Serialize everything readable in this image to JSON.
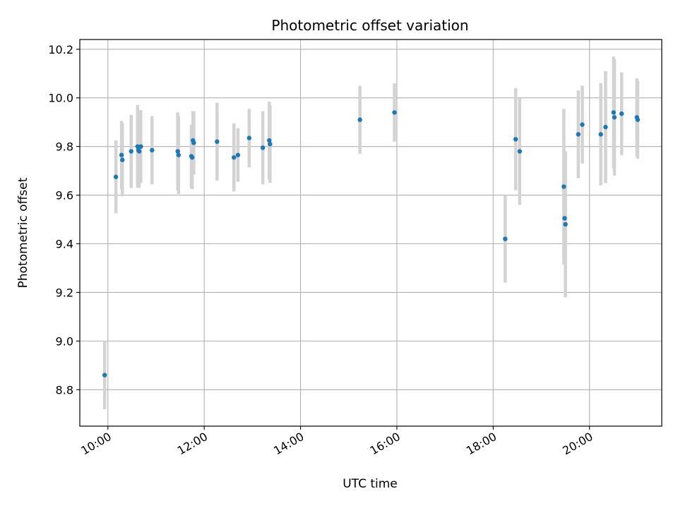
{
  "chart_data": {
    "type": "scatter",
    "title": "Photometric offset variation",
    "xlabel": "UTC time",
    "ylabel": "Photometric offset",
    "x_ticks": [
      "10:00",
      "12:00",
      "14:00",
      "16:00",
      "18:00",
      "20:00"
    ],
    "y_ticks": [
      "8.8",
      "9.0",
      "9.2",
      "9.4",
      "9.6",
      "9.8",
      "10.0",
      "10.2"
    ],
    "xlim": [
      "09:25",
      "21:30"
    ],
    "ylim": [
      8.65,
      10.24
    ],
    "grid": true,
    "legend": "none",
    "point_color": "#1f77b4",
    "errorbar_color": "#d3d3d3",
    "series": [
      {
        "points": [
          {
            "x": "09:56",
            "y": 8.86,
            "err": 0.14
          },
          {
            "x": "10:10",
            "y": 9.675,
            "err": 0.15
          },
          {
            "x": "10:17",
            "y": 9.765,
            "err": 0.14
          },
          {
            "x": "10:18",
            "y": 9.745,
            "err": 0.15
          },
          {
            "x": "10:29",
            "y": 9.78,
            "err": 0.15
          },
          {
            "x": "10:37",
            "y": 9.8,
            "err": 0.17
          },
          {
            "x": "10:38",
            "y": 9.785,
            "err": 0.15
          },
          {
            "x": "10:39",
            "y": 9.78,
            "err": 0.15
          },
          {
            "x": "10:41",
            "y": 9.8,
            "err": 0.15
          },
          {
            "x": "10:55",
            "y": 9.785,
            "err": 0.14
          },
          {
            "x": "11:27",
            "y": 9.78,
            "err": 0.16
          },
          {
            "x": "11:28",
            "y": 9.765,
            "err": 0.16
          },
          {
            "x": "11:44",
            "y": 9.76,
            "err": 0.13
          },
          {
            "x": "11:45",
            "y": 9.755,
            "err": 0.13
          },
          {
            "x": "11:46",
            "y": 9.825,
            "err": 0.12
          },
          {
            "x": "11:47",
            "y": 9.815,
            "err": 0.13
          },
          {
            "x": "12:16",
            "y": 9.82,
            "err": 0.16
          },
          {
            "x": "12:37",
            "y": 9.755,
            "err": 0.14
          },
          {
            "x": "12:42",
            "y": 9.765,
            "err": 0.11
          },
          {
            "x": "12:56",
            "y": 9.835,
            "err": 0.12
          },
          {
            "x": "13:13",
            "y": 9.795,
            "err": 0.15
          },
          {
            "x": "13:21",
            "y": 9.825,
            "err": 0.16
          },
          {
            "x": "13:22",
            "y": 9.81,
            "err": 0.16
          },
          {
            "x": "15:14",
            "y": 9.91,
            "err": 0.14
          },
          {
            "x": "15:57",
            "y": 9.94,
            "err": 0.12
          },
          {
            "x": "18:15",
            "y": 9.42,
            "err": 0.18
          },
          {
            "x": "18:28",
            "y": 9.83,
            "err": 0.21
          },
          {
            "x": "18:33",
            "y": 9.78,
            "err": 0.22
          },
          {
            "x": "19:28",
            "y": 9.635,
            "err": 0.32
          },
          {
            "x": "19:29",
            "y": 9.505,
            "err": 0.19
          },
          {
            "x": "19:30",
            "y": 9.48,
            "err": 0.3
          },
          {
            "x": "19:46",
            "y": 9.85,
            "err": 0.18
          },
          {
            "x": "19:51",
            "y": 9.89,
            "err": 0.16
          },
          {
            "x": "20:14",
            "y": 9.85,
            "err": 0.21
          },
          {
            "x": "20:20",
            "y": 9.88,
            "err": 0.23
          },
          {
            "x": "20:30",
            "y": 9.94,
            "err": 0.23
          },
          {
            "x": "20:31",
            "y": 9.92,
            "err": 0.24
          },
          {
            "x": "20:40",
            "y": 9.935,
            "err": 0.17
          },
          {
            "x": "20:59",
            "y": 9.92,
            "err": 0.16
          },
          {
            "x": "21:00",
            "y": 9.91,
            "err": 0.16
          }
        ]
      }
    ]
  }
}
